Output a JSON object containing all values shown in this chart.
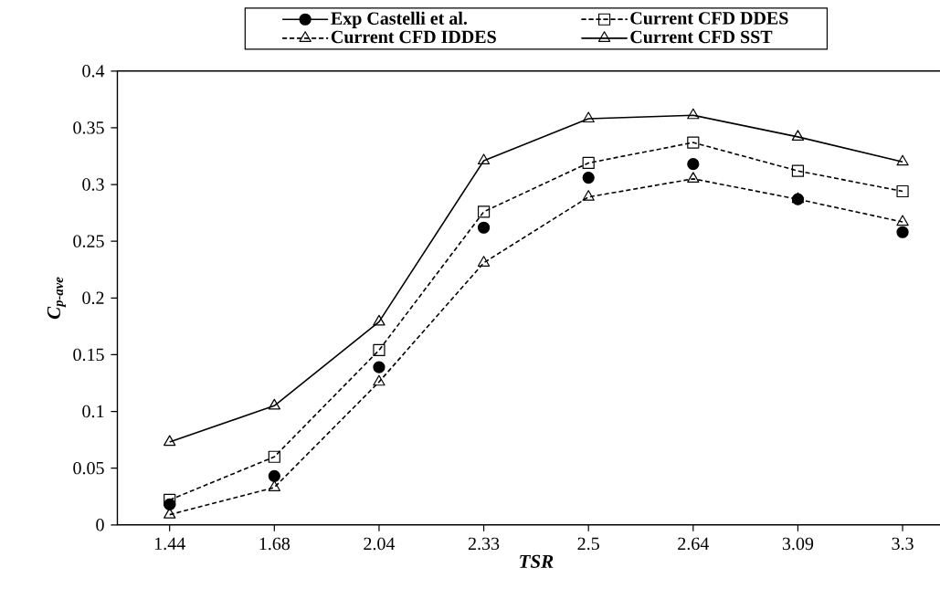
{
  "chart_data": {
    "type": "line",
    "xlabel": "TSR",
    "ylabel": "C$_{p-ave}$",
    "categories": [
      "1.44",
      "1.68",
      "2.04",
      "2.33",
      "2.5",
      "2.64",
      "3.09",
      "3.3"
    ],
    "ylim": [
      0,
      0.4
    ],
    "yticks": [
      0,
      0.05,
      0.1,
      0.15,
      0.2,
      0.25,
      0.3,
      0.35,
      0.4
    ],
    "grid": false,
    "legend": "top",
    "series": [
      {
        "name": "Exp Castelli et al.",
        "type": "scatter",
        "color": "#000000",
        "marker": "circle",
        "values": [
          0.018,
          0.043,
          0.139,
          0.262,
          0.306,
          0.318,
          0.287,
          0.258
        ]
      },
      {
        "name": "Current CFD DDES",
        "color": "#000000",
        "marker": "square",
        "line_style": "dashed",
        "values": [
          0.022,
          0.06,
          0.154,
          0.276,
          0.319,
          0.337,
          0.312,
          0.294
        ]
      },
      {
        "name": "Current CFD IDDES",
        "color": "#000000",
        "marker": "triangle",
        "line_style": "dashed",
        "values": [
          0.009,
          0.033,
          0.126,
          0.231,
          0.289,
          0.305,
          0.287,
          0.267
        ]
      },
      {
        "name": "Current CFD SST",
        "color": "#000000",
        "marker": "triangle",
        "line_style": "solid",
        "values": [
          0.073,
          0.105,
          0.179,
          0.321,
          0.358,
          0.361,
          0.342,
          0.32
        ]
      }
    ]
  }
}
